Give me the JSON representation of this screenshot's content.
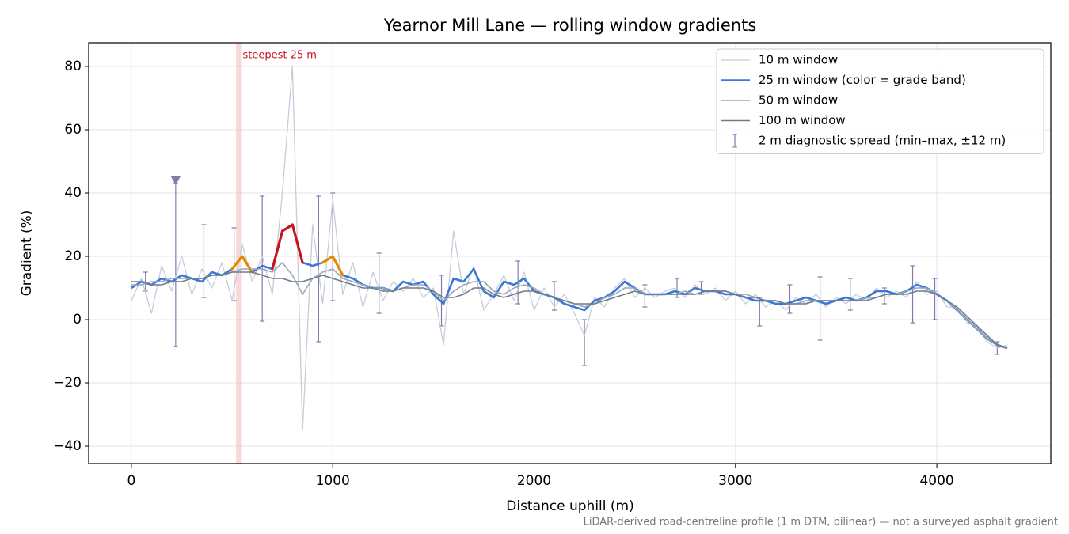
{
  "chart_data": {
    "type": "line",
    "title": "Yearnor Mill Lane — rolling window gradients",
    "xlabel": "Distance uphill (m)",
    "ylabel": "Gradient (%)",
    "footnote": "LiDAR-derived road-centreline profile (1 m DTM, bilinear) — not a surveyed asphalt gradient",
    "xlim": [
      -212,
      4566
    ],
    "ylim": [
      -45.5,
      87.5
    ],
    "xticks": [
      0,
      1000,
      2000,
      3000,
      4000
    ],
    "yticks": [
      {
        "value": -40,
        "label": "−40"
      },
      {
        "value": -20,
        "label": "−20"
      },
      0,
      20,
      40,
      60,
      80
    ],
    "grid": true,
    "legend": "upper right",
    "x": [
      0,
      50,
      100,
      150,
      200,
      250,
      300,
      350,
      400,
      450,
      500,
      550,
      600,
      650,
      700,
      750,
      800,
      850,
      900,
      950,
      1000,
      1050,
      1100,
      1150,
      1200,
      1250,
      1300,
      1350,
      1400,
      1450,
      1500,
      1550,
      1600,
      1650,
      1700,
      1750,
      1800,
      1850,
      1900,
      1950,
      2000,
      2050,
      2100,
      2150,
      2200,
      2250,
      2300,
      2350,
      2400,
      2450,
      2500,
      2550,
      2600,
      2650,
      2700,
      2750,
      2800,
      2850,
      2900,
      2950,
      3000,
      3050,
      3100,
      3150,
      3200,
      3250,
      3300,
      3350,
      3400,
      3450,
      3500,
      3550,
      3600,
      3650,
      3700,
      3750,
      3800,
      3850,
      3900,
      3950,
      4000,
      4050,
      4100,
      4150,
      4200,
      4250,
      4300,
      4350
    ],
    "series": [
      {
        "name": "10 m window",
        "color": "#c5cdd8",
        "width": 1.3,
        "values": [
          6,
          13,
          2,
          17,
          9,
          20,
          8,
          16,
          10,
          18,
          6,
          24,
          12,
          20,
          8,
          40,
          80,
          -35,
          30,
          5,
          38,
          8,
          18,
          4,
          15,
          6,
          12,
          9,
          13,
          7,
          10,
          -8,
          28,
          8,
          17,
          3,
          8,
          14,
          6,
          15,
          3,
          10,
          4,
          8,
          2,
          -5,
          7,
          4,
          10,
          13,
          7,
          10,
          7,
          9,
          10,
          7,
          11,
          8,
          10,
          6,
          9,
          5,
          8,
          4,
          6,
          3,
          7,
          5,
          8,
          4,
          7,
          5,
          8,
          6,
          10,
          7,
          9,
          7,
          12,
          8,
          9,
          4,
          4,
          -1,
          -2,
          -7,
          -9,
          -8
        ]
      },
      {
        "name": "25 m window (color = grade band)",
        "color": "#3a78d8",
        "width": 2.6,
        "bands": [
          {
            "min": 20,
            "color": "#e08a00"
          },
          {
            "min": 25,
            "color": "#c8141e"
          }
        ],
        "values": [
          10,
          12,
          11,
          13,
          12,
          14,
          13,
          12,
          15,
          14,
          16,
          20,
          15,
          17,
          16,
          28,
          30,
          18,
          17,
          18,
          20,
          14,
          13,
          11,
          10,
          10,
          9,
          12,
          11,
          12,
          8,
          5,
          13,
          12,
          16,
          9,
          7,
          12,
          11,
          13,
          9,
          8,
          7,
          5,
          4,
          3,
          6,
          7,
          9,
          12,
          10,
          8,
          8,
          8,
          9,
          8,
          10,
          9,
          9,
          8,
          8,
          7,
          6,
          6,
          5,
          5,
          6,
          7,
          6,
          5,
          6,
          7,
          6,
          7,
          9,
          9,
          8,
          9,
          11,
          10,
          8,
          6,
          3,
          0,
          -3,
          -6,
          -8,
          -9
        ]
      },
      {
        "name": "50 m window",
        "color": "#98a6b8",
        "width": 1.6,
        "values": [
          11,
          11,
          12,
          12,
          13,
          13,
          13,
          13,
          14,
          14,
          15,
          16,
          16,
          16,
          15,
          18,
          14,
          8,
          13,
          15,
          16,
          13,
          12,
          11,
          10,
          10,
          9,
          10,
          11,
          11,
          9,
          6,
          9,
          11,
          12,
          12,
          9,
          8,
          10,
          11,
          10,
          8,
          7,
          6,
          5,
          4,
          5,
          7,
          8,
          10,
          10,
          8,
          8,
          8,
          8,
          9,
          8,
          9,
          9,
          9,
          8,
          8,
          7,
          6,
          6,
          5,
          5,
          6,
          6,
          6,
          6,
          6,
          6,
          7,
          7,
          8,
          8,
          9,
          10,
          10,
          8,
          6,
          3,
          0,
          -3,
          -6,
          -8,
          -9
        ]
      },
      {
        "name": "100 m window",
        "color": "#707a88",
        "width": 1.6,
        "values": [
          12,
          12,
          11,
          11,
          12,
          12,
          13,
          13,
          14,
          14,
          15,
          15,
          15,
          14,
          13,
          13,
          12,
          12,
          13,
          14,
          13,
          12,
          11,
          10,
          10,
          9,
          9,
          10,
          10,
          10,
          9,
          7,
          7,
          8,
          10,
          10,
          8,
          7,
          8,
          9,
          9,
          8,
          7,
          6,
          5,
          5,
          5,
          6,
          7,
          8,
          9,
          8,
          8,
          8,
          8,
          8,
          8,
          9,
          9,
          9,
          8,
          7,
          7,
          6,
          6,
          5,
          5,
          5,
          6,
          6,
          6,
          6,
          6,
          6,
          7,
          8,
          8,
          8,
          9,
          9,
          8,
          6,
          4,
          1,
          -2,
          -5,
          -8,
          -9
        ]
      }
    ],
    "errorbars": {
      "name": "2 m diagnostic spread (min–max, ±12 m)",
      "color": "#8878aa",
      "x": [
        70,
        220,
        360,
        510,
        650,
        930,
        1000,
        1230,
        1540,
        1920,
        2100,
        2250,
        2550,
        2710,
        2830,
        3120,
        3270,
        3420,
        3570,
        3740,
        3880,
        3990,
        4300
      ],
      "low": [
        9,
        -8.5,
        7,
        6,
        -0.5,
        -7,
        6,
        2,
        -2,
        5,
        3,
        -14.5,
        4,
        7,
        8,
        -2,
        2,
        -6.5,
        3,
        5,
        -1,
        0,
        -11
      ],
      "high": [
        15,
        43,
        30,
        29,
        39,
        39,
        40,
        21,
        14,
        18.5,
        12,
        0,
        11,
        13,
        12,
        7,
        11,
        13.5,
        13,
        10,
        17,
        13,
        -7
      ]
    },
    "marker": {
      "x": 220,
      "y": 44,
      "color": "#8878aa"
    },
    "highlight": {
      "xlim": [
        520,
        545
      ],
      "label": "steepest 25 m",
      "color": "#f4b8bc",
      "label_color": "#c8141e"
    }
  }
}
